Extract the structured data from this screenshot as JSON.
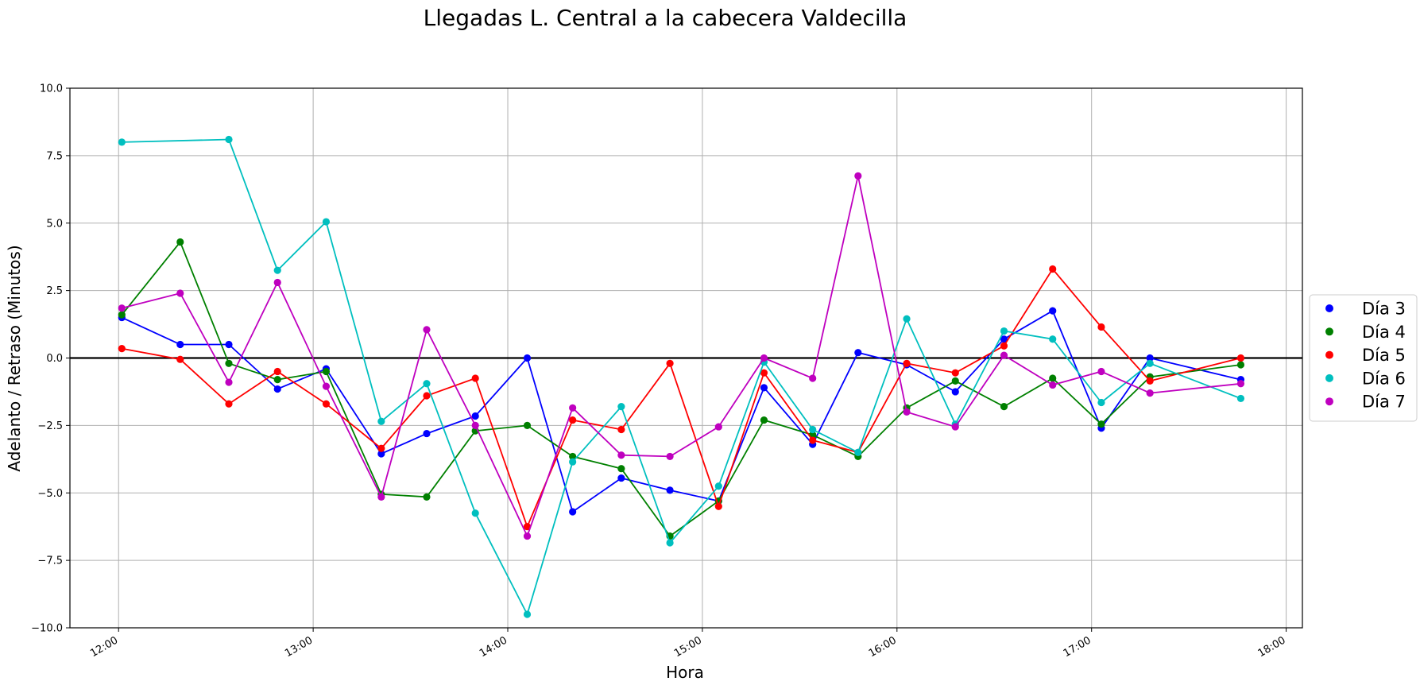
{
  "chart_data": {
    "type": "line",
    "title": "Llegadas L. Central a la cabecera Valdecilla",
    "xlabel": "Hora",
    "ylabel": "Adelanto / Retraso (Minutos)",
    "x_unit": "hora del día (HH:MM)",
    "xlim": [
      "11:45",
      "18:05"
    ],
    "ylim": [
      -10,
      10
    ],
    "x_ticks": [
      "12:00",
      "13:00",
      "14:00",
      "15:00",
      "16:00",
      "17:00",
      "18:00"
    ],
    "y_ticks": [
      "−10.0",
      "−7.5",
      "−5.0",
      "−2.5",
      "0.0",
      "2.5",
      "5.0",
      "7.5",
      "10.0"
    ],
    "grid": true,
    "reference_line": {
      "y": 0,
      "color": "#000000"
    },
    "legend_position": "right",
    "series": [
      {
        "name": "Día 3",
        "color": "#0000ff",
        "x": [
          "12:01",
          "12:19",
          "12:34",
          "12:49",
          "13:04",
          "13:21",
          "13:35",
          "13:50",
          "14:06",
          "14:20",
          "14:35",
          "14:50",
          "15:05",
          "15:19",
          "15:34",
          "15:48",
          "16:03",
          "16:18",
          "16:33",
          "16:48",
          "17:03",
          "17:18",
          "17:46"
        ],
        "values": [
          1.5,
          0.5,
          0.5,
          -1.15,
          -0.4,
          -3.55,
          -2.8,
          -2.15,
          0.0,
          -5.7,
          -4.45,
          -4.9,
          -5.3,
          -1.1,
          -3.2,
          0.2,
          -0.25,
          -1.25,
          0.7,
          1.75,
          -2.6,
          0.0,
          -0.8
        ]
      },
      {
        "name": "Día 4",
        "color": "#008000",
        "x": [
          "12:01",
          "12:19",
          "12:34",
          "12:49",
          "13:04",
          "13:21",
          "13:35",
          "13:50",
          "14:06",
          "14:20",
          "14:35",
          "14:50",
          "15:05",
          "15:19",
          "15:34",
          "15:48",
          "16:03",
          "16:18",
          "16:33",
          "16:48",
          "17:03",
          "17:18",
          "17:46"
        ],
        "values": [
          1.6,
          4.3,
          -0.2,
          -0.8,
          -0.5,
          -5.05,
          -5.15,
          -2.7,
          -2.5,
          -3.65,
          -4.1,
          -6.6,
          -5.3,
          -2.3,
          -2.85,
          -3.65,
          -1.85,
          -0.85,
          -1.8,
          -0.75,
          -2.45,
          -0.7,
          -0.25
        ]
      },
      {
        "name": "Día 5",
        "color": "#ff0000",
        "x": [
          "12:01",
          "12:19",
          "12:34",
          "12:49",
          "13:04",
          "13:21",
          "13:35",
          "13:50",
          "14:06",
          "14:20",
          "14:35",
          "14:50",
          "15:05",
          "15:19",
          "15:34",
          "15:48",
          "16:03",
          "16:18",
          "16:33",
          "16:48",
          "17:03",
          "17:18",
          "17:46"
        ],
        "values": [
          0.35,
          -0.05,
          -1.7,
          -0.5,
          -1.7,
          -3.35,
          -1.4,
          -0.75,
          -6.25,
          -2.3,
          -2.65,
          -0.2,
          -5.5,
          -0.55,
          -3.05,
          -3.5,
          -0.2,
          -0.55,
          0.45,
          3.3,
          1.15,
          -0.85,
          0.0
        ]
      },
      {
        "name": "Día 6",
        "color": "#00bfbf",
        "x": [
          "12:01",
          "12:34",
          "12:49",
          "13:04",
          "13:21",
          "13:35",
          "13:50",
          "14:06",
          "14:20",
          "14:35",
          "14:50",
          "15:05",
          "15:19",
          "15:34",
          "15:48",
          "16:03",
          "16:18",
          "16:33",
          "16:48",
          "17:03",
          "17:18",
          "17:46"
        ],
        "values": [
          8.0,
          8.1,
          3.25,
          5.05,
          -2.35,
          -0.95,
          -5.75,
          -9.5,
          -3.85,
          -1.8,
          -6.85,
          -4.75,
          -0.15,
          -2.65,
          -3.5,
          1.45,
          -2.45,
          1.0,
          0.7,
          -1.65,
          -0.2,
          -1.5
        ]
      },
      {
        "name": "Día 7",
        "color": "#bf00bf",
        "x": [
          "12:01",
          "12:19",
          "12:34",
          "12:49",
          "13:04",
          "13:21",
          "13:35",
          "13:50",
          "14:06",
          "14:20",
          "14:35",
          "14:50",
          "15:05",
          "15:19",
          "15:34",
          "15:48",
          "16:03",
          "16:18",
          "16:33",
          "16:48",
          "17:03",
          "17:18",
          "17:46"
        ],
        "values": [
          1.85,
          2.4,
          -0.9,
          2.8,
          -1.05,
          -5.15,
          1.05,
          -2.5,
          -6.6,
          -1.85,
          -3.6,
          -3.65,
          -2.55,
          0.0,
          -0.75,
          6.75,
          -2.0,
          -2.55,
          0.1,
          -1.0,
          -0.5,
          -1.3,
          -0.95
        ]
      }
    ]
  }
}
